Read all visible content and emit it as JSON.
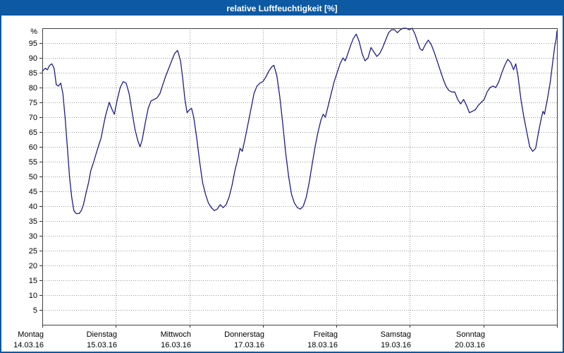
{
  "window": {
    "title": "relative Luftfeuchtigkeit [%]"
  },
  "colors": {
    "titlebar": "#0d59a3",
    "frame": "#0d59a3",
    "line": "#1c1c8f",
    "grid": "#999999",
    "plot_border": "#404040",
    "label_text": "#000000"
  },
  "chart_data": {
    "type": "line",
    "title": "relative Luftfeuchtigkeit [%]",
    "ylabel": "%",
    "xlabel": "",
    "ylim": [
      0,
      100
    ],
    "ytick_step": 5,
    "yticks": [
      5,
      10,
      15,
      20,
      25,
      30,
      35,
      40,
      45,
      50,
      55,
      60,
      65,
      70,
      75,
      80,
      85,
      90,
      95
    ],
    "grid": true,
    "legend": "none",
    "line_color": "#1c1c8f",
    "grid_color": "#999999",
    "days": [
      {
        "label": "Montag",
        "date": "14.03.16"
      },
      {
        "label": "Dienstag",
        "date": "15.03.16"
      },
      {
        "label": "Mittwoch",
        "date": "16.03.16"
      },
      {
        "label": "Donnerstag",
        "date": "17.03.16"
      },
      {
        "label": "Freitag",
        "date": "18.03.16"
      },
      {
        "label": "Samstag",
        "date": "19.03.16"
      },
      {
        "label": "Sonntag",
        "date": "20.03.16"
      }
    ],
    "x_unit": "days (0 = Montag 14.03.16 00:00)",
    "series": [
      {
        "name": "relative Luftfeuchtigkeit [%]",
        "points": [
          [
            0.0,
            85.5
          ],
          [
            0.04,
            86.5
          ],
          [
            0.07,
            86
          ],
          [
            0.1,
            87.5
          ],
          [
            0.13,
            88
          ],
          [
            0.16,
            86.5
          ],
          [
            0.19,
            81
          ],
          [
            0.22,
            80.5
          ],
          [
            0.25,
            81.5
          ],
          [
            0.28,
            78
          ],
          [
            0.31,
            70
          ],
          [
            0.34,
            60
          ],
          [
            0.37,
            50
          ],
          [
            0.4,
            43
          ],
          [
            0.43,
            38.5
          ],
          [
            0.46,
            37.5
          ],
          [
            0.5,
            37.5
          ],
          [
            0.53,
            38.5
          ],
          [
            0.56,
            40.5
          ],
          [
            0.6,
            45
          ],
          [
            0.63,
            48
          ],
          [
            0.66,
            52
          ],
          [
            0.7,
            55
          ],
          [
            0.73,
            57.5
          ],
          [
            0.76,
            60
          ],
          [
            0.8,
            63
          ],
          [
            0.83,
            67
          ],
          [
            0.86,
            70.5
          ],
          [
            0.91,
            75
          ],
          [
            0.95,
            72.5
          ],
          [
            0.98,
            71
          ],
          [
            1.02,
            76
          ],
          [
            1.06,
            80
          ],
          [
            1.1,
            82
          ],
          [
            1.14,
            81.5
          ],
          [
            1.18,
            78
          ],
          [
            1.22,
            72
          ],
          [
            1.26,
            66
          ],
          [
            1.3,
            62
          ],
          [
            1.33,
            60
          ],
          [
            1.36,
            62.5
          ],
          [
            1.4,
            68
          ],
          [
            1.44,
            73
          ],
          [
            1.48,
            75.5
          ],
          [
            1.52,
            76
          ],
          [
            1.56,
            76.5
          ],
          [
            1.6,
            78
          ],
          [
            1.64,
            81
          ],
          [
            1.68,
            84
          ],
          [
            1.72,
            86.5
          ],
          [
            1.76,
            89
          ],
          [
            1.8,
            91.5
          ],
          [
            1.84,
            92.5
          ],
          [
            1.88,
            89
          ],
          [
            1.91,
            83
          ],
          [
            1.94,
            76
          ],
          [
            1.97,
            71.5
          ],
          [
            2.0,
            72.5
          ],
          [
            2.03,
            73
          ],
          [
            2.06,
            70
          ],
          [
            2.1,
            63
          ],
          [
            2.14,
            55
          ],
          [
            2.18,
            48
          ],
          [
            2.22,
            44
          ],
          [
            2.26,
            41
          ],
          [
            2.3,
            39.5
          ],
          [
            2.34,
            38.5
          ],
          [
            2.38,
            39
          ],
          [
            2.42,
            40.5
          ],
          [
            2.46,
            39.5
          ],
          [
            2.5,
            40.5
          ],
          [
            2.54,
            43
          ],
          [
            2.58,
            47
          ],
          [
            2.62,
            52
          ],
          [
            2.66,
            56
          ],
          [
            2.69,
            59.5
          ],
          [
            2.72,
            58.5
          ],
          [
            2.76,
            63
          ],
          [
            2.8,
            68
          ],
          [
            2.84,
            73
          ],
          [
            2.88,
            78
          ],
          [
            2.92,
            80.5
          ],
          [
            2.96,
            81.5
          ],
          [
            3.0,
            82
          ],
          [
            3.04,
            83.5
          ],
          [
            3.08,
            85.5
          ],
          [
            3.12,
            87
          ],
          [
            3.15,
            87.5
          ],
          [
            3.19,
            84
          ],
          [
            3.23,
            77
          ],
          [
            3.27,
            68
          ],
          [
            3.31,
            58
          ],
          [
            3.35,
            50
          ],
          [
            3.39,
            44
          ],
          [
            3.43,
            41
          ],
          [
            3.47,
            39.5
          ],
          [
            3.51,
            39
          ],
          [
            3.55,
            40
          ],
          [
            3.59,
            43
          ],
          [
            3.63,
            48
          ],
          [
            3.67,
            54
          ],
          [
            3.71,
            60
          ],
          [
            3.75,
            65
          ],
          [
            3.79,
            69
          ],
          [
            3.82,
            71
          ],
          [
            3.85,
            70
          ],
          [
            3.89,
            74
          ],
          [
            3.93,
            78
          ],
          [
            3.97,
            82
          ],
          [
            4.01,
            85
          ],
          [
            4.05,
            88
          ],
          [
            4.09,
            90
          ],
          [
            4.12,
            89
          ],
          [
            4.15,
            91
          ],
          [
            4.19,
            94
          ],
          [
            4.23,
            96.5
          ],
          [
            4.27,
            98
          ],
          [
            4.31,
            95.5
          ],
          [
            4.35,
            91.5
          ],
          [
            4.39,
            89
          ],
          [
            4.43,
            90
          ],
          [
            4.47,
            93.5
          ],
          [
            4.51,
            92
          ],
          [
            4.55,
            90.5
          ],
          [
            4.59,
            91.5
          ],
          [
            4.63,
            93.5
          ],
          [
            4.67,
            96
          ],
          [
            4.71,
            98.5
          ],
          [
            4.75,
            99.5
          ],
          [
            4.79,
            99.5
          ],
          [
            4.83,
            98.5
          ],
          [
            4.87,
            99.5
          ],
          [
            4.91,
            100
          ],
          [
            4.95,
            100
          ],
          [
            4.99,
            99.5
          ],
          [
            5.03,
            100
          ],
          [
            5.07,
            98
          ],
          [
            5.11,
            95
          ],
          [
            5.14,
            93
          ],
          [
            5.17,
            92.5
          ],
          [
            5.21,
            94.5
          ],
          [
            5.25,
            96
          ],
          [
            5.29,
            94.5
          ],
          [
            5.33,
            92
          ],
          [
            5.37,
            89
          ],
          [
            5.41,
            86
          ],
          [
            5.45,
            83
          ],
          [
            5.49,
            80.5
          ],
          [
            5.53,
            79
          ],
          [
            5.57,
            78.5
          ],
          [
            5.61,
            78.5
          ],
          [
            5.65,
            76
          ],
          [
            5.69,
            74.5
          ],
          [
            5.73,
            76
          ],
          [
            5.77,
            74
          ],
          [
            5.81,
            71.5
          ],
          [
            5.85,
            72
          ],
          [
            5.89,
            72.5
          ],
          [
            5.93,
            74
          ],
          [
            5.97,
            75
          ],
          [
            6.01,
            76
          ],
          [
            6.05,
            78.5
          ],
          [
            6.09,
            80
          ],
          [
            6.13,
            80.5
          ],
          [
            6.17,
            80
          ],
          [
            6.21,
            82
          ],
          [
            6.25,
            85
          ],
          [
            6.29,
            87.5
          ],
          [
            6.33,
            89.5
          ],
          [
            6.37,
            88.5
          ],
          [
            6.41,
            86
          ],
          [
            6.44,
            88
          ],
          [
            6.47,
            84
          ],
          [
            6.51,
            76
          ],
          [
            6.55,
            70
          ],
          [
            6.59,
            65
          ],
          [
            6.63,
            60
          ],
          [
            6.67,
            58.5
          ],
          [
            6.71,
            59.5
          ],
          [
            6.75,
            65
          ],
          [
            6.79,
            70
          ],
          [
            6.81,
            72
          ],
          [
            6.83,
            71
          ],
          [
            6.87,
            76
          ],
          [
            6.91,
            82
          ],
          [
            6.94,
            88
          ],
          [
            6.97,
            94
          ],
          [
            6.99,
            96.5
          ],
          [
            7.0,
            99
          ]
        ]
      }
    ]
  }
}
